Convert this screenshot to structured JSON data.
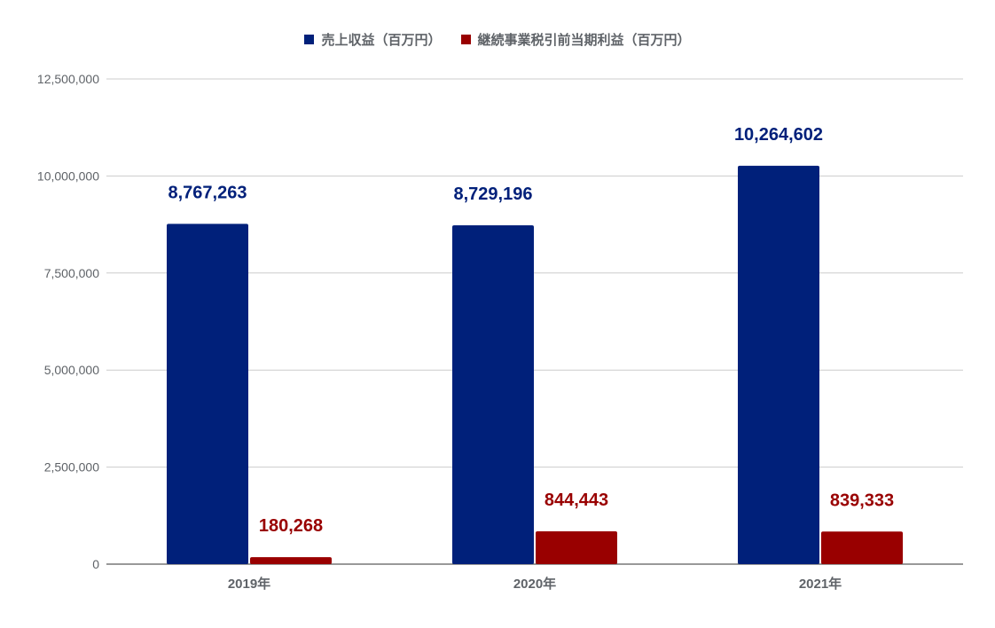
{
  "chart_data": {
    "type": "bar",
    "categories": [
      "2019年",
      "2020年",
      "2021年"
    ],
    "series": [
      {
        "name": "売上収益（百万円）",
        "color": "#00207a",
        "values": [
          8767263,
          8729196,
          10264602
        ],
        "labels": [
          "8,767,263",
          "8,729,196",
          "10,264,602"
        ]
      },
      {
        "name": "継続事業税引前当期利益（百万円）",
        "color": "#990000",
        "values": [
          180268,
          844443,
          839333
        ],
        "labels": [
          "180,268",
          "844,443",
          "839,333"
        ]
      }
    ],
    "ylim": [
      0,
      12500000
    ],
    "yticks": [
      0,
      2500000,
      5000000,
      7500000,
      10000000,
      12500000
    ],
    "ytick_labels": [
      "0",
      "2,500,000",
      "5,000,000",
      "7,500,000",
      "10,000,000",
      "12,500,000"
    ],
    "grid": true,
    "legend_position": "top"
  }
}
